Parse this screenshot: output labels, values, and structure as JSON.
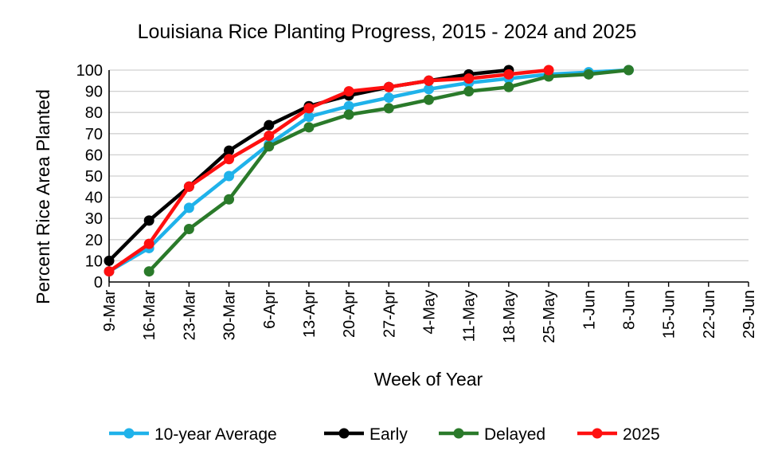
{
  "chart_data": {
    "type": "line",
    "title": "Louisiana Rice Planting  Progress, 2015 - 2024 and 2025",
    "xlabel": "Week of Year",
    "ylabel": "Percent Rice Area Planted",
    "categories": [
      "9-Mar",
      "16-Mar",
      "23-Mar",
      "30-Mar",
      "6-Apr",
      "13-Apr",
      "20-Apr",
      "27-Apr",
      "4-May",
      "11-May",
      "18-May",
      "25-May",
      "1-Jun",
      "8-Jun",
      "15-Jun",
      "22-Jun",
      "29-Jun"
    ],
    "yticks": [
      "0",
      "10",
      "20",
      "30",
      "40",
      "50",
      "60",
      "70",
      "80",
      "90",
      "100"
    ],
    "ylim": [
      0,
      100
    ],
    "grid": true,
    "legend_position": "bottom",
    "series": [
      {
        "name": "10-year Average",
        "color": "#1fb2ea",
        "values": [
          5,
          16,
          35,
          50,
          65,
          78,
          83,
          87,
          91,
          94,
          96,
          98,
          99,
          100,
          null,
          null,
          null
        ]
      },
      {
        "name": "Early",
        "color": "#000000",
        "values": [
          10,
          29,
          45,
          62,
          74,
          83,
          88,
          92,
          95,
          98,
          100,
          null,
          null,
          null,
          null,
          null,
          null
        ]
      },
      {
        "name": "Delayed",
        "color": "#2a7a2a",
        "values": [
          null,
          5,
          25,
          39,
          64,
          73,
          79,
          82,
          86,
          90,
          92,
          97,
          98,
          100,
          null,
          null,
          null
        ]
      },
      {
        "name": "2025",
        "color": "#ff1010",
        "values": [
          5,
          18,
          45,
          58,
          69,
          82,
          90,
          92,
          95,
          96,
          98,
          100,
          null,
          null,
          null,
          null,
          null
        ]
      }
    ]
  }
}
